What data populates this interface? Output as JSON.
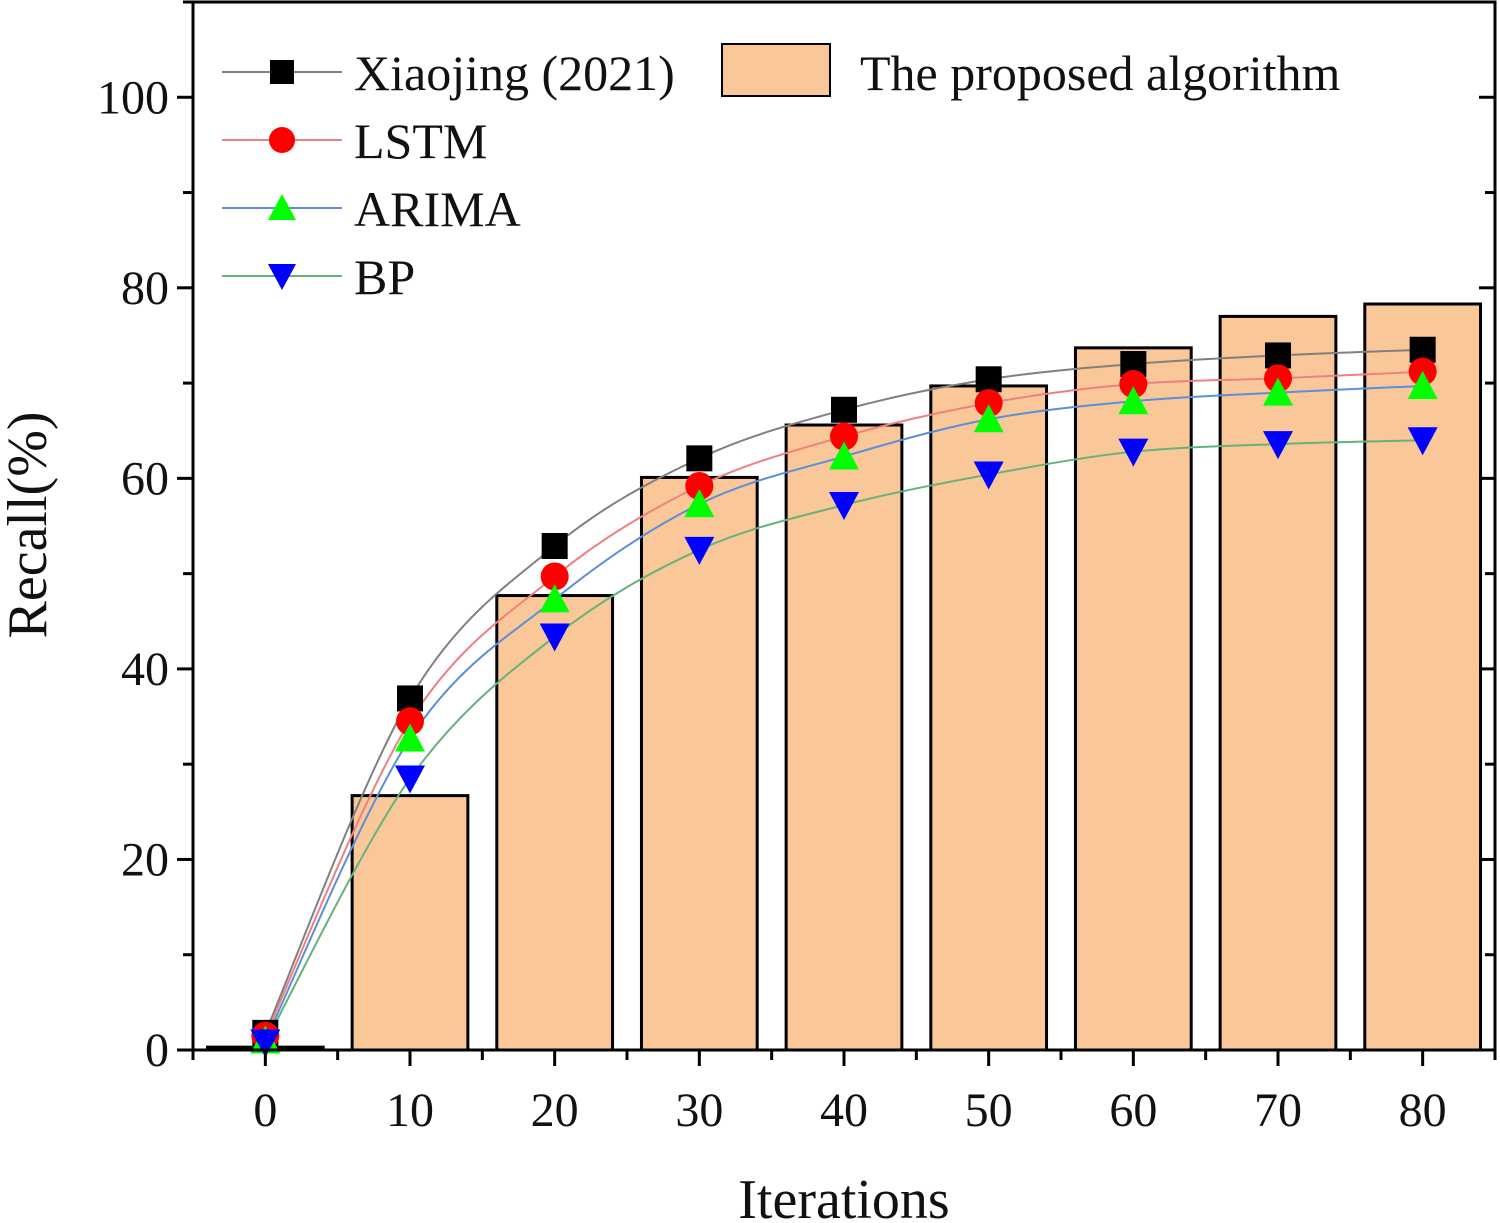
{
  "chart_data": {
    "type": "bar+line",
    "xlabel": "Iterations",
    "ylabel": "Recall(%)",
    "xlim": [
      -5,
      85
    ],
    "ylim": [
      0,
      110
    ],
    "x": [
      0,
      10,
      20,
      30,
      40,
      50,
      60,
      70,
      80
    ],
    "xticks": [
      "0",
      "10",
      "20",
      "30",
      "40",
      "50",
      "60",
      "70",
      "80"
    ],
    "yticks": [
      "0",
      "20",
      "40",
      "60",
      "80",
      "100"
    ],
    "legend_position": "top-left",
    "bar_series": {
      "name": "The proposed algorithm",
      "color": "#FAC898",
      "values": [
        0.3,
        26.7,
        47.7,
        60.1,
        65.6,
        69.7,
        73.7,
        77.0,
        78.3
      ]
    },
    "series": [
      {
        "name": "Xiaojing (2021)",
        "marker": "square",
        "marker_color": "#000000",
        "line_color": "#808080",
        "values": [
          1.8,
          36.9,
          52.9,
          62.1,
          67.2,
          70.4,
          72.0,
          72.9,
          73.5
        ]
      },
      {
        "name": "LSTM",
        "marker": "circle",
        "marker_color": "#FF0000",
        "line_color": "#F08080",
        "values": [
          1.5,
          34.5,
          49.7,
          59.2,
          64.4,
          67.9,
          69.9,
          70.5,
          71.2
        ]
      },
      {
        "name": "ARIMA",
        "marker": "triangle-up",
        "marker_color": "#00FF00",
        "line_color": "#5B8FD9",
        "values": [
          1.0,
          32.7,
          47.3,
          57.3,
          62.3,
          66.2,
          68.1,
          69.0,
          69.7
        ]
      },
      {
        "name": "BP",
        "marker": "triangle-down",
        "marker_color": "#0000FF",
        "line_color": "#66B27A",
        "values": [
          0.8,
          28.5,
          43.4,
          52.5,
          57.2,
          60.4,
          62.8,
          63.6,
          64.0
        ]
      }
    ]
  }
}
